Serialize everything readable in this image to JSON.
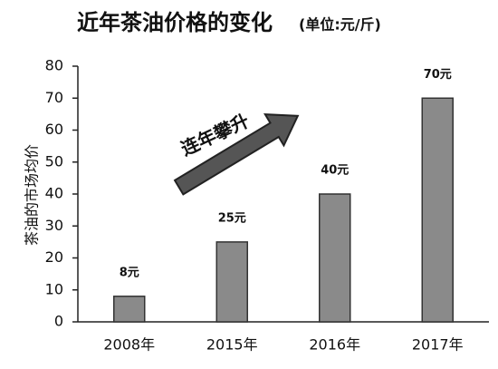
{
  "chart_data": {
    "type": "bar",
    "title": "近年茶油价格的变化",
    "subtitle": "(单位:元/斤)",
    "y_label": "茶油的市场均价",
    "annotation": "连年攀升",
    "categories": [
      "2008年",
      "2015年",
      "2016年",
      "2017年"
    ],
    "values": [
      8,
      25,
      40,
      70
    ],
    "value_labels": [
      "8元",
      "25元",
      "40元",
      "70元"
    ],
    "color": "#8a8a8a",
    "ylim": [
      0,
      80
    ],
    "yticks": [
      0,
      10,
      20,
      30,
      40,
      50,
      60,
      70,
      80
    ]
  }
}
